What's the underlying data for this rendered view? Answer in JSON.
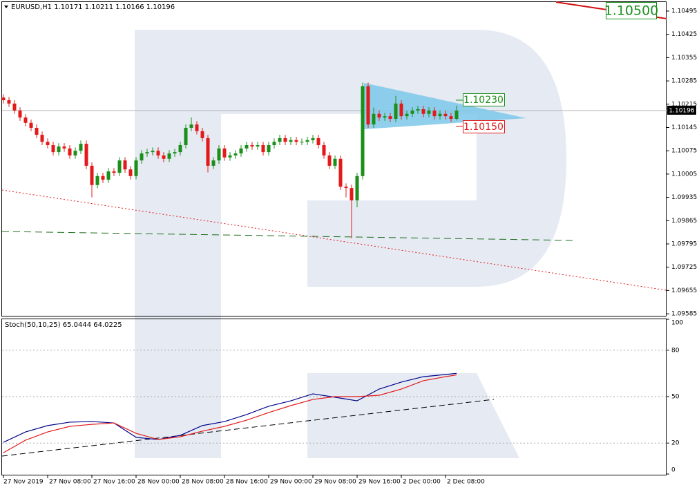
{
  "chart_data": [
    {
      "type": "candlestick",
      "title": "EURUSD,H1  1.10171 1.10211 1.10166 1.10196",
      "open": [
        1.10235,
        1.10227,
        1.10217,
        1.10196,
        1.10175,
        1.10159,
        1.10144,
        1.10123,
        1.10102,
        1.10092,
        1.10071,
        1.10088,
        1.10082,
        1.10061,
        1.10075,
        1.10096,
        1.1003,
        1.09972,
        1.09999,
        1.09988,
        1.10013,
        1.10009,
        1.10046,
        1.10019,
        1.09999,
        1.10046,
        1.10067,
        1.10071,
        1.10075,
        1.10061,
        1.10051,
        1.10067,
        1.10071,
        1.10092,
        1.10144,
        1.10154,
        1.10134,
        1.10113,
        1.1003,
        1.10046,
        1.10082,
        1.10055,
        1.10061,
        1.10067,
        1.10082,
        1.10092,
        1.10088,
        1.10092,
        1.10071,
        1.10092,
        1.10102,
        1.10113,
        1.10102,
        1.10107,
        1.10102,
        1.10102,
        1.10107,
        1.10113,
        1.10092,
        1.10061,
        1.1003,
        1.10051,
        1.09967,
        1.09963,
        1.09926,
        1.09999,
        1.10269,
        1.10154,
        1.10186,
        1.10175,
        1.10179,
        1.10171,
        1.10217,
        1.10179,
        1.10186,
        1.10196,
        1.102,
        1.10186,
        1.10196,
        1.10179,
        1.10186,
        1.10179,
        1.10171
      ],
      "high": [
        1.10245,
        1.10237,
        1.10227,
        1.10206,
        1.10185,
        1.10169,
        1.10154,
        1.10133,
        1.10112,
        1.10102,
        1.10098,
        1.10098,
        1.10092,
        1.10085,
        1.10106,
        1.10106,
        1.1004,
        1.10009,
        1.10009,
        1.10023,
        1.10023,
        1.10056,
        1.10056,
        1.10029,
        1.10056,
        1.10077,
        1.10081,
        1.10085,
        1.10085,
        1.10071,
        1.10077,
        1.10081,
        1.10102,
        1.10154,
        1.10175,
        1.10164,
        1.10144,
        1.10123,
        1.10056,
        1.10092,
        1.10092,
        1.10071,
        1.10077,
        1.10092,
        1.10102,
        1.10102,
        1.10102,
        1.10102,
        1.10102,
        1.10112,
        1.10123,
        1.10123,
        1.10117,
        1.10117,
        1.10112,
        1.10117,
        1.10123,
        1.10123,
        1.10102,
        1.10071,
        1.10061,
        1.10061,
        1.09977,
        1.09973,
        1.10009,
        1.1028,
        1.1028,
        1.10205,
        1.10196,
        1.10189,
        1.10189,
        1.1024,
        1.10227,
        1.10196,
        1.10206,
        1.1021,
        1.1021,
        1.10206,
        1.10206,
        1.10196,
        1.10196,
        1.10189,
        1.10211
      ],
      "low": [
        1.10217,
        1.10207,
        1.10186,
        1.10165,
        1.10149,
        1.10134,
        1.10113,
        1.10092,
        1.10082,
        1.10061,
        1.10061,
        1.10072,
        1.10051,
        1.10051,
        1.10065,
        1.1002,
        1.09935,
        1.09962,
        1.09978,
        1.09978,
        1.09999,
        1.09999,
        1.10009,
        1.09989,
        1.09989,
        1.10036,
        1.10057,
        1.10061,
        1.10051,
        1.10041,
        1.10041,
        1.10057,
        1.10061,
        1.10082,
        1.10134,
        1.10124,
        1.10103,
        1.1001,
        1.1002,
        1.10036,
        1.10045,
        1.10045,
        1.10051,
        1.10057,
        1.10072,
        1.10078,
        1.10078,
        1.10061,
        1.10061,
        1.10082,
        1.10092,
        1.10092,
        1.10092,
        1.10092,
        1.10092,
        1.10092,
        1.10097,
        1.10082,
        1.10051,
        1.1002,
        1.1002,
        1.09957,
        1.09935,
        1.09812,
        1.09905,
        1.09989,
        1.10144,
        1.10144,
        1.10165,
        1.10165,
        1.10161,
        1.10161,
        1.10169,
        1.10169,
        1.10176,
        1.10186,
        1.10176,
        1.10176,
        1.10169,
        1.10169,
        1.10169,
        1.10161,
        1.10166
      ],
      "close": [
        1.10227,
        1.10217,
        1.10196,
        1.10175,
        1.10159,
        1.10144,
        1.10123,
        1.10102,
        1.10092,
        1.10071,
        1.10088,
        1.10082,
        1.10061,
        1.10075,
        1.10096,
        1.1003,
        1.09972,
        1.09999,
        1.09988,
        1.10013,
        1.10009,
        1.10046,
        1.10019,
        1.09999,
        1.10046,
        1.10067,
        1.10071,
        1.10075,
        1.10061,
        1.10051,
        1.10067,
        1.10071,
        1.10092,
        1.10144,
        1.10154,
        1.10134,
        1.10113,
        1.1003,
        1.10046,
        1.10082,
        1.10055,
        1.10061,
        1.10067,
        1.10082,
        1.10092,
        1.10088,
        1.10092,
        1.10071,
        1.10092,
        1.10102,
        1.10113,
        1.10102,
        1.10107,
        1.10102,
        1.10102,
        1.10107,
        1.10113,
        1.10092,
        1.10061,
        1.1003,
        1.10051,
        1.09967,
        1.09963,
        1.09926,
        1.09999,
        1.10269,
        1.10154,
        1.10186,
        1.10175,
        1.10179,
        1.10171,
        1.10217,
        1.10179,
        1.10186,
        1.10196,
        1.102,
        1.10186,
        1.10196,
        1.10179,
        1.10186,
        1.10179,
        1.10171,
        1.10196
      ],
      "up_color": "#1a8f1a",
      "down_color": "#e41a1a",
      "xlim": [
        -0.25,
        120
      ],
      "xticks": [
        {
          "value": 0,
          "label": "27 Nov 2019"
        },
        {
          "value": 8,
          "label": "27 Nov 08:00"
        },
        {
          "value": 16,
          "label": "27 Nov 16:00"
        },
        {
          "value": 24,
          "label": "28 Nov 00:00"
        },
        {
          "value": 32,
          "label": "28 Nov 08:00"
        },
        {
          "value": 40,
          "label": "28 Nov 16:00"
        },
        {
          "value": 48,
          "label": "29 Nov 00:00"
        },
        {
          "value": 56,
          "label": "29 Nov 08:00"
        },
        {
          "value": 64,
          "label": "29 Nov 16:00"
        },
        {
          "value": 72,
          "label": "2 Dec 00:00"
        },
        {
          "value": 80,
          "label": "2 Dec 08:00"
        }
      ],
      "ylim": [
        1.09579,
        1.10522
      ],
      "yticks": [
        1.10495,
        1.10425,
        1.10355,
        1.10285,
        1.10215,
        1.10145,
        1.10075,
        1.10005,
        1.09935,
        1.09865,
        1.09795,
        1.09725,
        1.09655,
        1.09585
      ],
      "annotations": {
        "current_price": "1.10196",
        "upper_level": "1.10230",
        "lower_level": "1.10150",
        "target": "1.10500"
      }
    },
    {
      "type": "line",
      "title": "Stoch(50,10,25) 65.0444 64.0225",
      "x": [
        0,
        4,
        8,
        12,
        16,
        20,
        24,
        28,
        32,
        36,
        40,
        44,
        48,
        52,
        56,
        60,
        64,
        68,
        72,
        76,
        80,
        82
      ],
      "series": [
        {
          "color": "#00008b",
          "values": [
            20.5,
            27.2,
            31.3,
            33.5,
            33.9,
            33.0,
            23.7,
            22.3,
            25.0,
            31.3,
            33.9,
            38.4,
            43.8,
            47.3,
            51.8,
            49.6,
            47.3,
            54.9,
            59.4,
            62.9,
            64.3,
            65.0444
          ]
        },
        {
          "color": "#e41a1a",
          "values": [
            13.8,
            21.9,
            27.2,
            30.8,
            32.1,
            33.0,
            26.3,
            22.3,
            24.1,
            27.7,
            30.8,
            34.8,
            39.7,
            44.2,
            48.2,
            50.0,
            50.0,
            50.9,
            54.9,
            60.3,
            62.9,
            64.0225
          ]
        }
      ],
      "xlim": [
        -0.25,
        120
      ],
      "ylim": [
        0,
        100
      ],
      "yticks": [
        0,
        20,
        50,
        80,
        100
      ],
      "levels": [
        20,
        50,
        80
      ]
    }
  ]
}
